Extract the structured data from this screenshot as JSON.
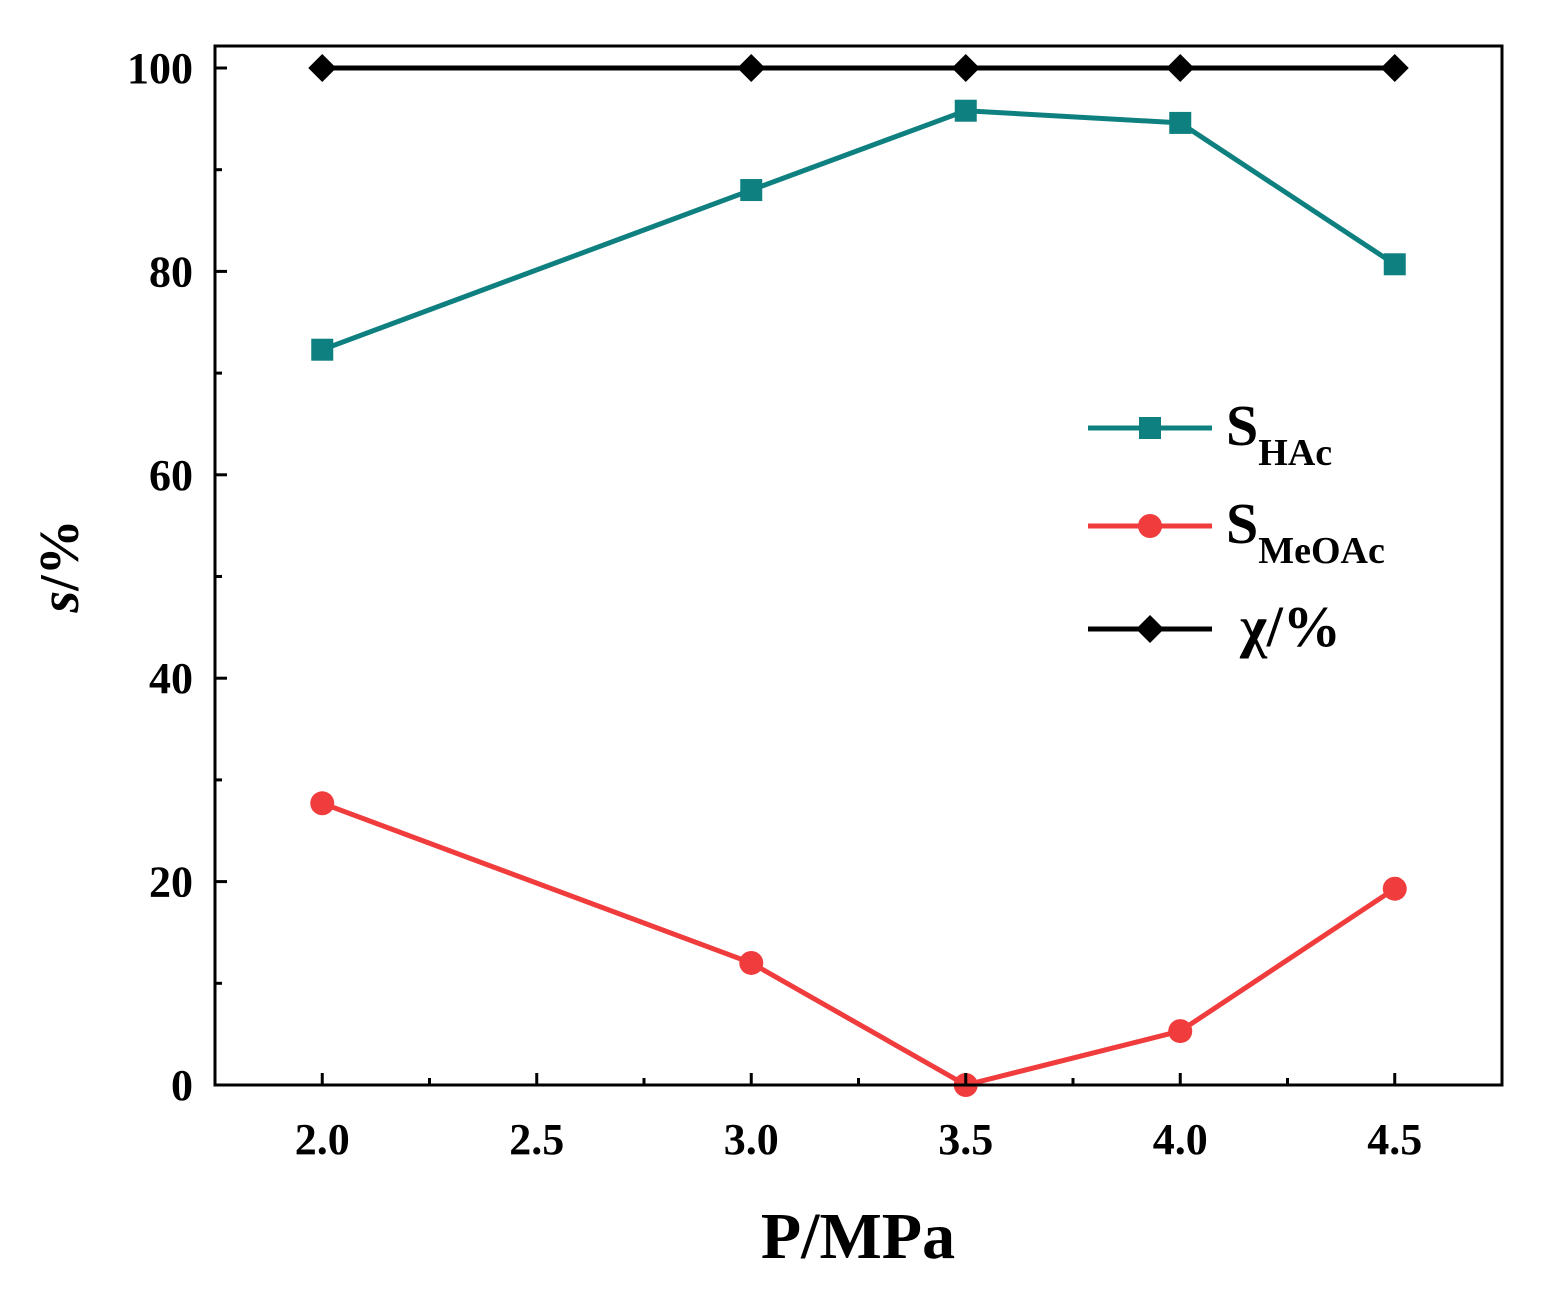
{
  "chart_data": {
    "type": "line",
    "title": "",
    "xlabel": "P/MPa",
    "ylabel_main": "s",
    "ylabel_unit": "/%",
    "xlim": [
      1.75,
      4.75
    ],
    "ylim": [
      0,
      100
    ],
    "x_ticks": [
      2.0,
      2.5,
      3.0,
      3.5,
      4.0,
      4.5
    ],
    "x_tick_labels": [
      "2.0",
      "2.5",
      "3.0",
      "3.5",
      "4.0",
      "4.5"
    ],
    "x_minor_ticks": [
      2.25,
      2.75,
      3.25,
      3.75,
      4.25
    ],
    "y_ticks": [
      0,
      20,
      40,
      60,
      80,
      100
    ],
    "y_tick_labels": [
      "0",
      "20",
      "40",
      "60",
      "80",
      "100"
    ],
    "y_minor_ticks": [
      10,
      30,
      50,
      70,
      90
    ],
    "grid": false,
    "legend_position": "right",
    "series": [
      {
        "key": "shac",
        "name": "S_HAc",
        "legend_main": "S",
        "legend_sub": "HAc",
        "marker": "square",
        "color": "#0f8080",
        "x": [
          2.0,
          3.0,
          3.5,
          4.0,
          4.5
        ],
        "values": [
          72.3,
          88.0,
          95.8,
          94.6,
          80.7
        ]
      },
      {
        "key": "smeoac",
        "name": "S_MeOAc",
        "legend_main": "S",
        "legend_sub": "MeOAc",
        "marker": "circle",
        "color": "#f03c3c",
        "x": [
          2.0,
          3.0,
          3.5,
          4.0,
          4.5
        ],
        "values": [
          27.7,
          12.0,
          0.0,
          5.3,
          19.3
        ]
      },
      {
        "key": "chi",
        "name": "χ/%",
        "legend_main": "χ/%",
        "legend_sub": "",
        "marker": "diamond",
        "color": "#000000",
        "x": [
          2.0,
          3.0,
          3.5,
          4.0,
          4.5
        ],
        "values": [
          100,
          100,
          100,
          100,
          100
        ]
      }
    ]
  }
}
